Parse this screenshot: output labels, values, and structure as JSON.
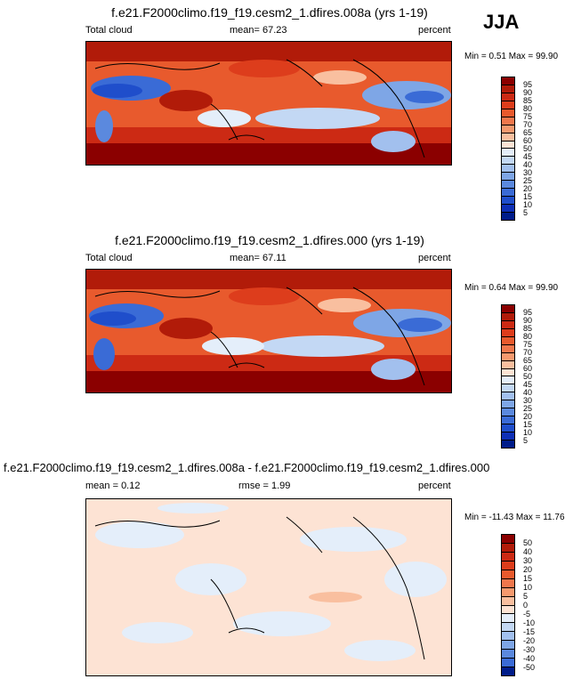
{
  "season": "JJA",
  "chart_data": [
    {
      "type": "heatmap",
      "title": "f.e21.F2000climo.f19_f19.cesm2_1.dfires.008a (yrs 1-19)",
      "left_label": "Total cloud",
      "mean_label": "mean=",
      "mean_value": "67.23",
      "units": "percent",
      "min_label": "Min =",
      "min_value": "0.51",
      "max_label": "Max =",
      "max_value": "99.90",
      "colorbar_levels": [
        "95",
        "90",
        "85",
        "80",
        "75",
        "70",
        "65",
        "60",
        "50",
        "45",
        "40",
        "30",
        "25",
        "20",
        "15",
        "10",
        "5"
      ],
      "colorbar_colors": [
        "#8b0000",
        "#b11b09",
        "#cc2a14",
        "#dd3d1c",
        "#e85a2d",
        "#f0774c",
        "#f5996e",
        "#f9bf9f",
        "#fde3d4",
        "#e4eefa",
        "#c3d8f4",
        "#a2c0ee",
        "#7ea6e6",
        "#5b89de",
        "#3a6bd6",
        "#1f4ecb",
        "#0e2fb6",
        "#001c8a"
      ]
    },
    {
      "type": "heatmap",
      "title": "f.e21.F2000climo.f19_f19.cesm2_1.dfires.000 (yrs 1-19)",
      "left_label": "Total cloud",
      "mean_label": "mean=",
      "mean_value": "67.11",
      "units": "percent",
      "min_label": "Min =",
      "min_value": "0.64",
      "max_label": "Max =",
      "max_value": "99.90",
      "colorbar_levels": [
        "95",
        "90",
        "85",
        "80",
        "75",
        "70",
        "65",
        "60",
        "50",
        "45",
        "40",
        "30",
        "25",
        "20",
        "15",
        "10",
        "5"
      ],
      "colorbar_colors": [
        "#8b0000",
        "#b11b09",
        "#cc2a14",
        "#dd3d1c",
        "#e85a2d",
        "#f0774c",
        "#f5996e",
        "#f9bf9f",
        "#fde3d4",
        "#e4eefa",
        "#c3d8f4",
        "#a2c0ee",
        "#7ea6e6",
        "#5b89de",
        "#3a6bd6",
        "#1f4ecb",
        "#0e2fb6",
        "#001c8a"
      ]
    },
    {
      "type": "heatmap",
      "title": "f.e21.F2000climo.f19_f19.cesm2_1.dfires.008a - f.e21.F2000climo.f19_f19.cesm2_1.dfires.000",
      "mean_label": "mean =",
      "mean_value": "0.12",
      "rmse_label": "rmse =",
      "rmse_value": "1.99",
      "units": "percent",
      "min_label": "Min =",
      "min_value": "-11.43",
      "max_label": "Max =",
      "max_value": "11.76",
      "colorbar_levels": [
        "50",
        "40",
        "30",
        "20",
        "15",
        "10",
        "5",
        "0",
        "-5",
        "-10",
        "-15",
        "-20",
        "-30",
        "-40",
        "-50"
      ],
      "colorbar_colors": [
        "#8b0000",
        "#b11b09",
        "#cc2a14",
        "#dd3d1c",
        "#e85a2d",
        "#f0774c",
        "#f5996e",
        "#f9bf9f",
        "#fde3d4",
        "#e4eefa",
        "#c3d8f4",
        "#a2c0ee",
        "#7ea6e6",
        "#5b89de",
        "#3a6bd6",
        "#001c8a"
      ]
    }
  ]
}
